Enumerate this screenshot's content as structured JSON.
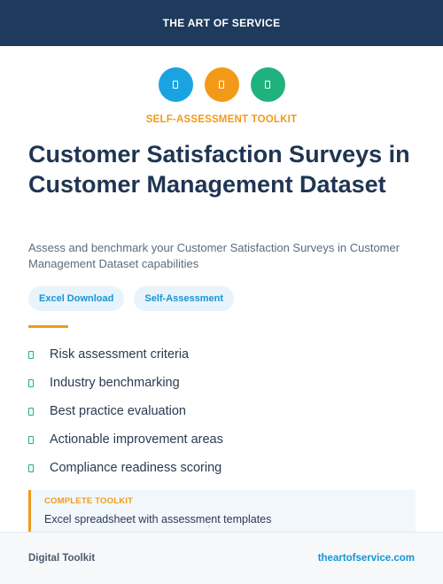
{
  "header": {
    "brand": "THE ART OF SERVICE"
  },
  "icons": [
    {
      "name": "blue-badge-icon",
      "color": "#1aa3e0"
    },
    {
      "name": "orange-badge-icon",
      "color": "#f29a18"
    },
    {
      "name": "green-badge-icon",
      "color": "#1fb27e"
    }
  ],
  "eyebrow": "SELF-ASSESSMENT TOOLKIT",
  "title": "Customer Satisfaction Surveys in Customer Management Dataset",
  "subtitle": "Assess and benchmark your Customer Satisfaction Surveys in Customer Management Dataset capabilities",
  "tags": [
    "Excel Download",
    "Self-Assessment"
  ],
  "features": [
    "Risk assessment criteria",
    "Industry benchmarking",
    "Best practice evaluation",
    "Actionable improvement areas",
    "Compliance readiness scoring"
  ],
  "toolkit": {
    "label": "COMPLETE TOOLKIT",
    "description": "Excel spreadsheet with assessment templates"
  },
  "footer": {
    "left": "Digital Toolkit",
    "right": "theartofservice.com"
  },
  "colors": {
    "navy": "#1e3a5c",
    "orange": "#f29a18",
    "blue": "#1596d6",
    "green": "#1fb27e"
  }
}
